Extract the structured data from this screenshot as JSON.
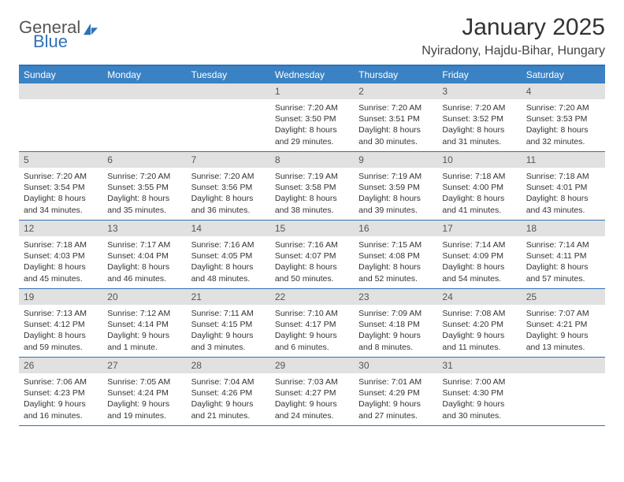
{
  "logo": {
    "line1": "General",
    "line2": "Blue"
  },
  "title": "January 2025",
  "location": "Nyiradony, Hajdu-Bihar, Hungary",
  "colors": {
    "header_bar": "#3b82c4",
    "header_border": "#2f71b8",
    "daynum_bg": "#e1e1e1",
    "text": "#333333",
    "logo_blue": "#2f71b8"
  },
  "weekdays": [
    "Sunday",
    "Monday",
    "Tuesday",
    "Wednesday",
    "Thursday",
    "Friday",
    "Saturday"
  ],
  "weeks": [
    [
      {
        "n": "",
        "sr": "",
        "ss": "",
        "dl": ""
      },
      {
        "n": "",
        "sr": "",
        "ss": "",
        "dl": ""
      },
      {
        "n": "",
        "sr": "",
        "ss": "",
        "dl": ""
      },
      {
        "n": "1",
        "sr": "Sunrise: 7:20 AM",
        "ss": "Sunset: 3:50 PM",
        "dl": "Daylight: 8 hours and 29 minutes."
      },
      {
        "n": "2",
        "sr": "Sunrise: 7:20 AM",
        "ss": "Sunset: 3:51 PM",
        "dl": "Daylight: 8 hours and 30 minutes."
      },
      {
        "n": "3",
        "sr": "Sunrise: 7:20 AM",
        "ss": "Sunset: 3:52 PM",
        "dl": "Daylight: 8 hours and 31 minutes."
      },
      {
        "n": "4",
        "sr": "Sunrise: 7:20 AM",
        "ss": "Sunset: 3:53 PM",
        "dl": "Daylight: 8 hours and 32 minutes."
      }
    ],
    [
      {
        "n": "5",
        "sr": "Sunrise: 7:20 AM",
        "ss": "Sunset: 3:54 PM",
        "dl": "Daylight: 8 hours and 34 minutes."
      },
      {
        "n": "6",
        "sr": "Sunrise: 7:20 AM",
        "ss": "Sunset: 3:55 PM",
        "dl": "Daylight: 8 hours and 35 minutes."
      },
      {
        "n": "7",
        "sr": "Sunrise: 7:20 AM",
        "ss": "Sunset: 3:56 PM",
        "dl": "Daylight: 8 hours and 36 minutes."
      },
      {
        "n": "8",
        "sr": "Sunrise: 7:19 AM",
        "ss": "Sunset: 3:58 PM",
        "dl": "Daylight: 8 hours and 38 minutes."
      },
      {
        "n": "9",
        "sr": "Sunrise: 7:19 AM",
        "ss": "Sunset: 3:59 PM",
        "dl": "Daylight: 8 hours and 39 minutes."
      },
      {
        "n": "10",
        "sr": "Sunrise: 7:18 AM",
        "ss": "Sunset: 4:00 PM",
        "dl": "Daylight: 8 hours and 41 minutes."
      },
      {
        "n": "11",
        "sr": "Sunrise: 7:18 AM",
        "ss": "Sunset: 4:01 PM",
        "dl": "Daylight: 8 hours and 43 minutes."
      }
    ],
    [
      {
        "n": "12",
        "sr": "Sunrise: 7:18 AM",
        "ss": "Sunset: 4:03 PM",
        "dl": "Daylight: 8 hours and 45 minutes."
      },
      {
        "n": "13",
        "sr": "Sunrise: 7:17 AM",
        "ss": "Sunset: 4:04 PM",
        "dl": "Daylight: 8 hours and 46 minutes."
      },
      {
        "n": "14",
        "sr": "Sunrise: 7:16 AM",
        "ss": "Sunset: 4:05 PM",
        "dl": "Daylight: 8 hours and 48 minutes."
      },
      {
        "n": "15",
        "sr": "Sunrise: 7:16 AM",
        "ss": "Sunset: 4:07 PM",
        "dl": "Daylight: 8 hours and 50 minutes."
      },
      {
        "n": "16",
        "sr": "Sunrise: 7:15 AM",
        "ss": "Sunset: 4:08 PM",
        "dl": "Daylight: 8 hours and 52 minutes."
      },
      {
        "n": "17",
        "sr": "Sunrise: 7:14 AM",
        "ss": "Sunset: 4:09 PM",
        "dl": "Daylight: 8 hours and 54 minutes."
      },
      {
        "n": "18",
        "sr": "Sunrise: 7:14 AM",
        "ss": "Sunset: 4:11 PM",
        "dl": "Daylight: 8 hours and 57 minutes."
      }
    ],
    [
      {
        "n": "19",
        "sr": "Sunrise: 7:13 AM",
        "ss": "Sunset: 4:12 PM",
        "dl": "Daylight: 8 hours and 59 minutes."
      },
      {
        "n": "20",
        "sr": "Sunrise: 7:12 AM",
        "ss": "Sunset: 4:14 PM",
        "dl": "Daylight: 9 hours and 1 minute."
      },
      {
        "n": "21",
        "sr": "Sunrise: 7:11 AM",
        "ss": "Sunset: 4:15 PM",
        "dl": "Daylight: 9 hours and 3 minutes."
      },
      {
        "n": "22",
        "sr": "Sunrise: 7:10 AM",
        "ss": "Sunset: 4:17 PM",
        "dl": "Daylight: 9 hours and 6 minutes."
      },
      {
        "n": "23",
        "sr": "Sunrise: 7:09 AM",
        "ss": "Sunset: 4:18 PM",
        "dl": "Daylight: 9 hours and 8 minutes."
      },
      {
        "n": "24",
        "sr": "Sunrise: 7:08 AM",
        "ss": "Sunset: 4:20 PM",
        "dl": "Daylight: 9 hours and 11 minutes."
      },
      {
        "n": "25",
        "sr": "Sunrise: 7:07 AM",
        "ss": "Sunset: 4:21 PM",
        "dl": "Daylight: 9 hours and 13 minutes."
      }
    ],
    [
      {
        "n": "26",
        "sr": "Sunrise: 7:06 AM",
        "ss": "Sunset: 4:23 PM",
        "dl": "Daylight: 9 hours and 16 minutes."
      },
      {
        "n": "27",
        "sr": "Sunrise: 7:05 AM",
        "ss": "Sunset: 4:24 PM",
        "dl": "Daylight: 9 hours and 19 minutes."
      },
      {
        "n": "28",
        "sr": "Sunrise: 7:04 AM",
        "ss": "Sunset: 4:26 PM",
        "dl": "Daylight: 9 hours and 21 minutes."
      },
      {
        "n": "29",
        "sr": "Sunrise: 7:03 AM",
        "ss": "Sunset: 4:27 PM",
        "dl": "Daylight: 9 hours and 24 minutes."
      },
      {
        "n": "30",
        "sr": "Sunrise: 7:01 AM",
        "ss": "Sunset: 4:29 PM",
        "dl": "Daylight: 9 hours and 27 minutes."
      },
      {
        "n": "31",
        "sr": "Sunrise: 7:00 AM",
        "ss": "Sunset: 4:30 PM",
        "dl": "Daylight: 9 hours and 30 minutes."
      },
      {
        "n": "",
        "sr": "",
        "ss": "",
        "dl": ""
      }
    ]
  ]
}
